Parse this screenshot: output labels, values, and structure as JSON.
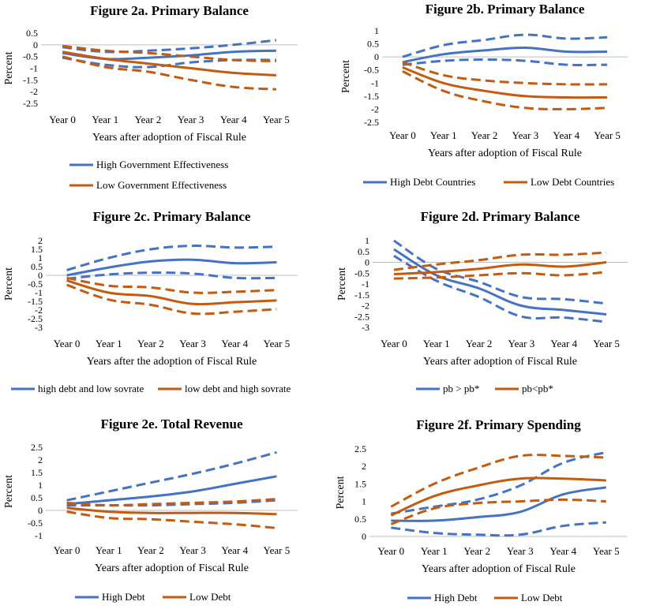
{
  "colors": {
    "blue": "#4472C4",
    "orange": "#C55A11",
    "axis": "#BFBFBF"
  },
  "chart_data": [
    {
      "type": "line",
      "title": "Figure 2a. Primary Balance",
      "xlabel": "Years after adoption of Fiscal Rule",
      "ylabel": "Percent",
      "categories": [
        "Year 0",
        "Year 1",
        "Year 2",
        "Year 3",
        "Year 4",
        "Year 5"
      ],
      "yticks": [
        "0.5",
        "0",
        "-0.5",
        "-1",
        "-1.5",
        "-2",
        "-2.5"
      ],
      "ylim": [
        -2.5,
        0.5
      ],
      "legend_position": "bottom",
      "series": [
        {
          "name": "High Government Effectiveness",
          "color": "blue",
          "style": "solid",
          "values": [
            -0.35,
            -0.6,
            -0.55,
            -0.45,
            -0.3,
            -0.25
          ]
        },
        {
          "name": "",
          "color": "blue",
          "style": "dashed",
          "values": [
            -0.1,
            -0.3,
            -0.25,
            -0.15,
            0.0,
            0.2
          ]
        },
        {
          "name": "",
          "color": "blue",
          "style": "dashed",
          "values": [
            -0.55,
            -0.85,
            -0.95,
            -0.75,
            -0.65,
            -0.65
          ]
        },
        {
          "name": "Low Government Effectiveness",
          "color": "orange",
          "style": "solid",
          "values": [
            -0.3,
            -0.6,
            -0.8,
            -1.0,
            -1.2,
            -1.3
          ]
        },
        {
          "name": "",
          "color": "orange",
          "style": "dashed",
          "values": [
            -0.05,
            -0.25,
            -0.35,
            -0.5,
            -0.65,
            -0.7
          ]
        },
        {
          "name": "",
          "color": "orange",
          "style": "dashed",
          "values": [
            -0.5,
            -0.95,
            -1.15,
            -1.5,
            -1.8,
            -1.9
          ]
        }
      ]
    },
    {
      "type": "line",
      "title": "Figure 2b. Primary Balance",
      "xlabel": "Years after adoption of Fiscal Rule",
      "ylabel": "Percent",
      "categories": [
        "Year 0",
        "Year 1",
        "Year 2",
        "Year 3",
        "Year 4",
        "Year 5"
      ],
      "yticks": [
        "1",
        "0.5",
        "0",
        "-0.5",
        "-1",
        "-1.5",
        "-2",
        "-2.5"
      ],
      "ylim": [
        -2.5,
        1
      ],
      "legend_position": "bottom",
      "series": [
        {
          "name": "High Debt Countries",
          "color": "blue",
          "style": "solid",
          "values": [
            -0.2,
            0.1,
            0.25,
            0.35,
            0.2,
            0.2
          ]
        },
        {
          "name": "",
          "color": "blue",
          "style": "dashed",
          "values": [
            0.0,
            0.45,
            0.65,
            0.85,
            0.7,
            0.75
          ]
        },
        {
          "name": "",
          "color": "blue",
          "style": "dashed",
          "values": [
            -0.3,
            -0.15,
            -0.1,
            -0.15,
            -0.3,
            -0.3
          ]
        },
        {
          "name": "Low Debt Countries",
          "color": "orange",
          "style": "solid",
          "values": [
            -0.4,
            -1.0,
            -1.3,
            -1.5,
            -1.55,
            -1.55
          ]
        },
        {
          "name": "",
          "color": "orange",
          "style": "dashed",
          "values": [
            -0.2,
            -0.7,
            -0.9,
            -1.0,
            -1.05,
            -1.05
          ]
        },
        {
          "name": "",
          "color": "orange",
          "style": "dashed",
          "values": [
            -0.55,
            -1.3,
            -1.7,
            -1.95,
            -2.0,
            -1.95
          ]
        }
      ]
    },
    {
      "type": "line",
      "title": "Figure 2c. Primary Balance",
      "xlabel": "Years after the adoption of Fiscal Rule",
      "ylabel": "Percent",
      "categories": [
        "Year 0",
        "Year 1",
        "Year 2",
        "Year 3",
        "Year 4",
        "Year 5"
      ],
      "yticks": [
        "2",
        "1.5",
        "1",
        "0.5",
        "0",
        "-0.5",
        "-1",
        "-1.5",
        "-2",
        "-2.5",
        "-3"
      ],
      "ylim": [
        -3,
        2
      ],
      "legend_position": "bottom",
      "series": [
        {
          "name": "high debt and low sovrate",
          "color": "blue",
          "style": "solid",
          "values": [
            0.0,
            0.45,
            0.8,
            0.9,
            0.7,
            0.75
          ]
        },
        {
          "name": "",
          "color": "blue",
          "style": "dashed",
          "values": [
            0.3,
            1.0,
            1.5,
            1.7,
            1.6,
            1.65
          ]
        },
        {
          "name": "",
          "color": "blue",
          "style": "dashed",
          "values": [
            -0.2,
            0.05,
            0.15,
            0.1,
            -0.15,
            -0.15
          ]
        },
        {
          "name": "low debt and high sovrate",
          "color": "orange",
          "style": "solid",
          "values": [
            -0.3,
            -1.0,
            -1.2,
            -1.65,
            -1.55,
            -1.45
          ]
        },
        {
          "name": "",
          "color": "orange",
          "style": "dashed",
          "values": [
            -0.15,
            -0.6,
            -0.7,
            -1.0,
            -0.95,
            -0.85
          ]
        },
        {
          "name": "",
          "color": "orange",
          "style": "dashed",
          "values": [
            -0.55,
            -1.4,
            -1.7,
            -2.2,
            -2.1,
            -1.95
          ]
        }
      ]
    },
    {
      "type": "line",
      "title": "Figure 2d. Primary Balance",
      "xlabel": "Years after adoption of Fiscal Rule",
      "ylabel": "Percent",
      "categories": [
        "Year 0",
        "Year 1",
        "Year 2",
        "Year 3",
        "Year 4",
        "Year 5"
      ],
      "yticks": [
        "1",
        "0.5",
        "0",
        "-0.5",
        "-1",
        "-1.5",
        "-2",
        "-2.5",
        "-3"
      ],
      "ylim": [
        -3,
        1
      ],
      "legend_position": "bottom",
      "series": [
        {
          "name": "pb > pb*",
          "color": "blue",
          "style": "solid",
          "values": [
            0.6,
            -0.6,
            -1.2,
            -2.0,
            -2.2,
            -2.4
          ]
        },
        {
          "name": "",
          "color": "blue",
          "style": "dashed",
          "values": [
            1.0,
            -0.3,
            -0.9,
            -1.6,
            -1.7,
            -1.9
          ]
        },
        {
          "name": "",
          "color": "blue",
          "style": "dashed",
          "values": [
            0.3,
            -0.85,
            -1.6,
            -2.5,
            -2.55,
            -2.75
          ]
        },
        {
          "name": "pb<pb*",
          "color": "orange",
          "style": "solid",
          "values": [
            -0.55,
            -0.45,
            -0.3,
            -0.1,
            -0.2,
            0.0
          ]
        },
        {
          "name": "",
          "color": "orange",
          "style": "dashed",
          "values": [
            -0.35,
            -0.1,
            0.1,
            0.35,
            0.35,
            0.45
          ]
        },
        {
          "name": "",
          "color": "orange",
          "style": "dashed",
          "values": [
            -0.75,
            -0.7,
            -0.6,
            -0.5,
            -0.6,
            -0.45
          ]
        }
      ]
    },
    {
      "type": "line",
      "title": "Figure 2e. Total Revenue",
      "xlabel": "Years after adoption of Fiscal Rule",
      "ylabel": "Percent",
      "categories": [
        "Year 0",
        "Year 1",
        "Year 2",
        "Year 3",
        "Year 4",
        "Year 5"
      ],
      "yticks": [
        "2.5",
        "2",
        "1.5",
        "1",
        "0.5",
        "0",
        "-0.5",
        "-1"
      ],
      "ylim": [
        -1,
        2.5
      ],
      "legend_position": "bottom",
      "series": [
        {
          "name": "High Debt",
          "color": "blue",
          "style": "solid",
          "values": [
            0.25,
            0.4,
            0.55,
            0.75,
            1.05,
            1.35
          ]
        },
        {
          "name": "",
          "color": "blue",
          "style": "dashed",
          "values": [
            0.4,
            0.75,
            1.1,
            1.45,
            1.85,
            2.3
          ]
        },
        {
          "name": "",
          "color": "blue",
          "style": "dashed",
          "values": [
            0.2,
            0.2,
            0.2,
            0.25,
            0.3,
            0.4
          ]
        },
        {
          "name": "Low Debt",
          "color": "orange",
          "style": "solid",
          "values": [
            0.1,
            -0.05,
            -0.1,
            -0.1,
            -0.1,
            -0.15
          ]
        },
        {
          "name": "",
          "color": "orange",
          "style": "dashed",
          "values": [
            0.3,
            0.2,
            0.25,
            0.3,
            0.35,
            0.45
          ]
        },
        {
          "name": "",
          "color": "orange",
          "style": "dashed",
          "values": [
            -0.05,
            -0.3,
            -0.35,
            -0.45,
            -0.55,
            -0.7
          ]
        }
      ]
    },
    {
      "type": "line",
      "title": "Figure 2f. Primary Spending",
      "xlabel": "Years after adoption of Fiscal Rule",
      "ylabel": "Percent",
      "categories": [
        "Year 0",
        "Year 1",
        "Year 2",
        "Year 3",
        "Year 4",
        "Year 5"
      ],
      "yticks": [
        "2.5",
        "2",
        "1.5",
        "1",
        "0.5",
        "0"
      ],
      "ylim": [
        0,
        2.5
      ],
      "legend_position": "bottom",
      "series": [
        {
          "name": "High Debt",
          "color": "blue",
          "style": "solid",
          "values": [
            0.45,
            0.45,
            0.55,
            0.7,
            1.2,
            1.4
          ]
        },
        {
          "name": "",
          "color": "blue",
          "style": "dashed",
          "values": [
            0.65,
            0.85,
            1.05,
            1.45,
            2.1,
            2.4
          ]
        },
        {
          "name": "",
          "color": "blue",
          "style": "dashed",
          "values": [
            0.25,
            0.1,
            0.05,
            0.05,
            0.3,
            0.4
          ]
        },
        {
          "name": "Low Debt",
          "color": "orange",
          "style": "solid",
          "values": [
            0.6,
            1.15,
            1.45,
            1.65,
            1.65,
            1.6
          ]
        },
        {
          "name": "",
          "color": "orange",
          "style": "dashed",
          "values": [
            0.85,
            1.5,
            1.95,
            2.3,
            2.3,
            2.25
          ]
        },
        {
          "name": "",
          "color": "orange",
          "style": "dashed",
          "values": [
            0.35,
            0.8,
            0.95,
            1.0,
            1.05,
            1.0
          ]
        }
      ]
    }
  ]
}
